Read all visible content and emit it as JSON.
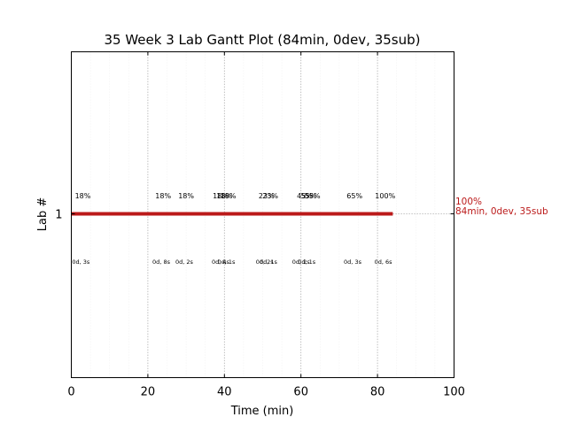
{
  "chart_data": {
    "type": "gantt",
    "title": "35 Week 3 Lab Gantt Plot (84min, 0dev, 35sub)",
    "xlabel": "Time (min)",
    "ylabel": "Lab #",
    "xlim": [
      0,
      100
    ],
    "xticks": [
      0,
      20,
      40,
      60,
      80,
      100
    ],
    "xtick_labels": [
      "0",
      "20",
      "40",
      "60",
      "80",
      "100"
    ],
    "yticks": [
      1
    ],
    "ytick_labels": [
      "1"
    ],
    "grid": "major and minor vertical dotted",
    "bar": {
      "lab": 1,
      "start": 0,
      "end": 84,
      "color": "#bb1a1a"
    },
    "dotted_extension_to": 100,
    "top_annotations": [
      {
        "x": 3,
        "label": "18%"
      },
      {
        "x": 24,
        "label": "18%"
      },
      {
        "x": 30,
        "label": "18%"
      },
      {
        "x": 39,
        "label": "18%"
      },
      {
        "x": 40,
        "label": "18%"
      },
      {
        "x": 41,
        "label": "18%"
      },
      {
        "x": 51,
        "label": "23%"
      },
      {
        "x": 52,
        "label": "23%"
      },
      {
        "x": 61,
        "label": "45%"
      },
      {
        "x": 62,
        "label": "55%"
      },
      {
        "x": 63,
        "label": "55%"
      },
      {
        "x": 74,
        "label": "65%"
      },
      {
        "x": 82,
        "label": "100%"
      }
    ],
    "bottom_annotations": [
      {
        "x": 2.5,
        "label": "0d, 3s"
      },
      {
        "x": 23.5,
        "label": "0d, 8s"
      },
      {
        "x": 29.5,
        "label": "0d, 2s"
      },
      {
        "x": 39,
        "label": "0d, 4s"
      },
      {
        "x": 40.5,
        "label": "0d, 1s"
      },
      {
        "x": 50.5,
        "label": "0d, 2s"
      },
      {
        "x": 51.5,
        "label": "0d, 1s"
      },
      {
        "x": 60,
        "label": "0d, 2s"
      },
      {
        "x": 61.5,
        "label": "0d, 1s"
      },
      {
        "x": 73.5,
        "label": "0d, 3s"
      },
      {
        "x": 81.5,
        "label": "0d, 6s"
      }
    ],
    "final_annotation": {
      "line1": "100%",
      "line2": "84min, 0dev, 35sub",
      "color": "#bb1a1a"
    }
  }
}
